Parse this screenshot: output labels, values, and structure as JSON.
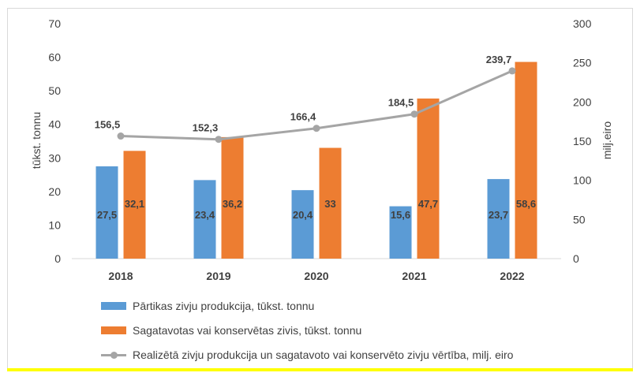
{
  "chart_data": {
    "type": "bar",
    "categories": [
      "2018",
      "2019",
      "2020",
      "2021",
      "2022"
    ],
    "series": [
      {
        "name": "Pārtikas zivju produkcija, tūkst. tonnu",
        "type": "bar",
        "axis": "left",
        "color": "#5b9bd5",
        "values": [
          27.5,
          23.4,
          20.4,
          15.6,
          23.7
        ],
        "labels": [
          "27,5",
          "23,4",
          "20,4",
          "15,6",
          "23,7"
        ]
      },
      {
        "name": "Sagatavotas vai konservētas zivis, tūkst. tonnu",
        "type": "bar",
        "axis": "left",
        "color": "#ed7d31",
        "values": [
          32.1,
          36.2,
          33,
          47.7,
          58.6
        ],
        "labels": [
          "32,1",
          "36,2",
          "33",
          "47,7",
          "58,6"
        ]
      },
      {
        "name": "Realizētā zivju produkcija un sagatavoto vai konservēto zivju vērtība, milj. eiro",
        "type": "line",
        "axis": "right",
        "color": "#a5a5a5",
        "values": [
          156.5,
          152.3,
          166.4,
          184.5,
          239.7
        ],
        "labels": [
          "156,5",
          "152,3",
          "166,4",
          "184,5",
          "239,7"
        ]
      }
    ],
    "ylabel": "tūkst. tonnu",
    "y2label": "milj.eiro",
    "ylim": [
      0,
      70
    ],
    "y2lim": [
      0,
      300
    ],
    "yticks": [
      "0",
      "10",
      "20",
      "30",
      "40",
      "50",
      "60",
      "70"
    ],
    "y2ticks": [
      "0",
      "50",
      "100",
      "150",
      "200",
      "250",
      "300"
    ],
    "grid": false,
    "legend_position": "bottom"
  }
}
